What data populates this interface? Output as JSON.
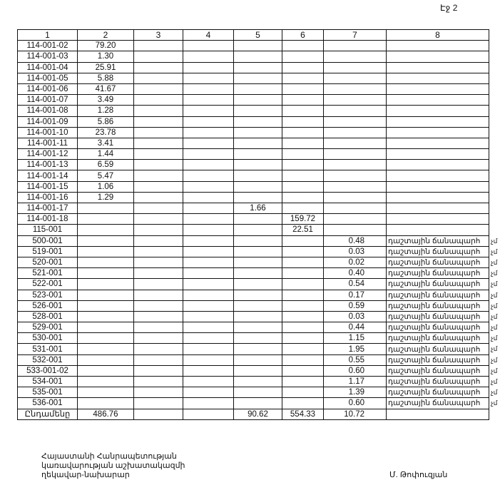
{
  "page_label": "Էջ 2",
  "table": {
    "headers": [
      "1",
      "2",
      "3",
      "4",
      "5",
      "6",
      "7",
      "8"
    ],
    "rows": [
      {
        "c1": "114-001-02",
        "c2": "79.20"
      },
      {
        "c1": "114-001-03",
        "c2": "1.30"
      },
      {
        "c1": "114-001-04",
        "c2": "25.91"
      },
      {
        "c1": "114-001-05",
        "c2": "5.88"
      },
      {
        "c1": "114-001-06",
        "c2": "41.67"
      },
      {
        "c1": "114-001-07",
        "c2": "3.49"
      },
      {
        "c1": "114-001-08",
        "c2": "1.28"
      },
      {
        "c1": "114-001-09",
        "c2": "5.86"
      },
      {
        "c1": "114-001-10",
        "c2": "23.78"
      },
      {
        "c1": "114-001-11",
        "c2": "3.41"
      },
      {
        "c1": "114-001-12",
        "c2": "1.44"
      },
      {
        "c1": "114-001-13",
        "c2": "6.59"
      },
      {
        "c1": "114-001-14",
        "c2": "5.47"
      },
      {
        "c1": "114-001-15",
        "c2": "1.06"
      },
      {
        "c1": "114-001-16",
        "c2": "1.29"
      },
      {
        "c1": "114-001-17",
        "c5": "1.66"
      },
      {
        "c1": "114-001-18",
        "c6": "159.72"
      },
      {
        "c1": "115-001",
        "c6": "22.51"
      },
      {
        "c1": "500-001",
        "c7": "0.48",
        "c8": "դաշտային ճանապարհ",
        "ovf": "չմ"
      },
      {
        "c1": "519-001",
        "c7": "0.03",
        "c8": "դաշտային ճանապարհ",
        "ovf": "չմ"
      },
      {
        "c1": "520-001",
        "c7": "0.02",
        "c8": "դաշտային ճանապարհ",
        "ovf": "չմ"
      },
      {
        "c1": "521-001",
        "c7": "0.40",
        "c8": "դաշտային ճանապարհ",
        "ovf": "չմ"
      },
      {
        "c1": "522-001",
        "c7": "0.54",
        "c8": "դաշտային ճանապարհ",
        "ovf": "չմ"
      },
      {
        "c1": "523-001",
        "c7": "0.17",
        "c8": "դաշտային ճանապարհ",
        "ovf": "չմ"
      },
      {
        "c1": "526-001",
        "c7": "0.59",
        "c8": "դաշտային ճանապարհ",
        "ovf": "չմ"
      },
      {
        "c1": "528-001",
        "c7": "0.03",
        "c8": "դաշտային ճանապարհ",
        "ovf": "չմ"
      },
      {
        "c1": "529-001",
        "c7": "0.44",
        "c8": "դաշտային ճանապարհ",
        "ovf": "չմ"
      },
      {
        "c1": "530-001",
        "c7": "1.15",
        "c8": "դաշտային ճանապարհ",
        "ovf": "չմ"
      },
      {
        "c1": "531-001",
        "c7": "1.95",
        "c8": "դաշտային ճանապարհ",
        "ovf": "չմ"
      },
      {
        "c1": "532-001",
        "c7": "0.55",
        "c8": "դաշտային ճանապարհ",
        "ovf": "չմ"
      },
      {
        "c1": "533-001-02",
        "c7": "0.60",
        "c8": "դաշտային ճանապարհ",
        "ovf": "չմ"
      },
      {
        "c1": "534-001",
        "c7": "1.17",
        "c8": "դաշտային ճանապարհ",
        "ovf": "չմ"
      },
      {
        "c1": "535-001",
        "c7": "1.39",
        "c8": "դաշտային ճանապարհ",
        "ovf": "չմ"
      },
      {
        "c1": "536-001",
        "c7": "0.60",
        "c8": "դաշտային ճանապարհ",
        "ovf": "չմ"
      }
    ],
    "total": {
      "c1": "Ընդամենը",
      "c2": "486.76",
      "c5": "90.62",
      "c6": "554.33",
      "c7": "10.72"
    }
  },
  "footer": {
    "left_line1": "Հայաստանի Հանրապետության",
    "left_line2": "կառավարության աշխատակազմի",
    "left_line3": "ղեկավար-նախարար",
    "signatory": "Մ. Թոփուզյան"
  }
}
